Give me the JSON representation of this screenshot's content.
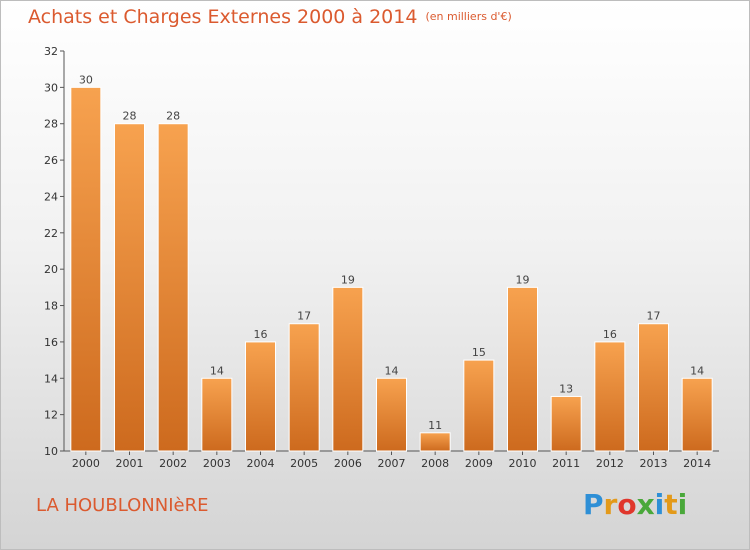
{
  "header": {
    "title": "Achats et Charges Externes 2000 à 2014",
    "subtitle": "(en milliers d'€)"
  },
  "footer": {
    "commune": "LA HOUBLONNIèRE",
    "logo_text": "Proxiti",
    "logo_letters": [
      {
        "char": "P",
        "color": "#2e8fd6"
      },
      {
        "char": "r",
        "color": "#e39a1a"
      },
      {
        "char": "o",
        "color": "#e0362c"
      },
      {
        "char": "x",
        "color": "#49a83a"
      },
      {
        "char": "i",
        "color": "#2e8fd6"
      },
      {
        "char": "t",
        "color": "#e39a1a"
      },
      {
        "char": "i",
        "color": "#49a83a"
      }
    ]
  },
  "colors": {
    "accent": "#db5a2f",
    "bar_light": "#f7a24f",
    "bar_dark": "#cd6a1e"
  },
  "chart_data": {
    "type": "bar",
    "title": "Achats et Charges Externes 2000 à 2014",
    "categories": [
      "2000",
      "2001",
      "2002",
      "2003",
      "2004",
      "2005",
      "2006",
      "2007",
      "2008",
      "2009",
      "2010",
      "2011",
      "2012",
      "2013",
      "2014"
    ],
    "values": [
      30,
      28,
      28,
      14,
      16,
      17,
      19,
      14,
      11,
      15,
      19,
      13,
      16,
      17,
      14
    ],
    "ylim": [
      10,
      32
    ],
    "yticks": [
      10,
      12,
      14,
      16,
      18,
      20,
      22,
      24,
      26,
      28,
      30,
      32
    ],
    "grid": false,
    "data_labels": true
  }
}
